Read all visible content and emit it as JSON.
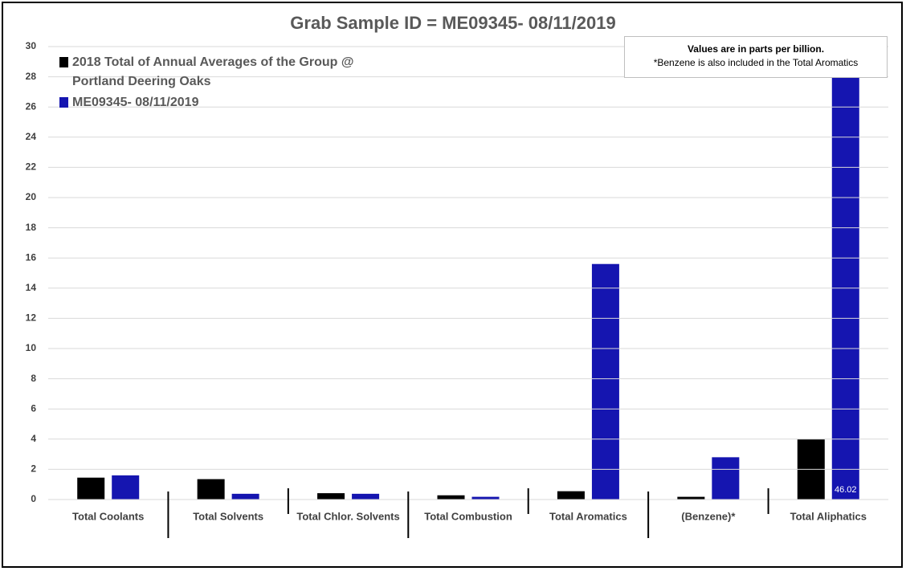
{
  "chart_data": {
    "type": "bar",
    "title": "Grab Sample ID = ME09345- 08/11/2019",
    "annotations": [
      "Values are in parts per billion.",
      "*Benzene is also included in the Total Aromatics"
    ],
    "categories": [
      "Total Coolants",
      "Total Solvents",
      "Total Chlor. Solvents",
      "Total Combustion",
      "Total Aromatics",
      "(Benzene)*",
      "Total Aliphatics"
    ],
    "series": [
      {
        "name": "2018 Total of Annual Averages of the Group @ Portland Deering Oaks",
        "color": "#000000",
        "values": [
          1.45,
          1.35,
          0.42,
          0.28,
          0.55,
          0.18,
          4.0
        ]
      },
      {
        "name": "ME09345- 08/11/2019",
        "color": "#1515b0",
        "values": [
          1.6,
          0.38,
          0.38,
          0.18,
          15.6,
          2.8,
          46.02
        ],
        "value_labels": [
          null,
          null,
          null,
          null,
          null,
          null,
          "46.02"
        ]
      }
    ],
    "ylim": [
      0,
      30
    ],
    "yticks": [
      0,
      2,
      4,
      6,
      8,
      10,
      12,
      14,
      16,
      18,
      20,
      22,
      24,
      26,
      28,
      30
    ],
    "grid": true
  }
}
